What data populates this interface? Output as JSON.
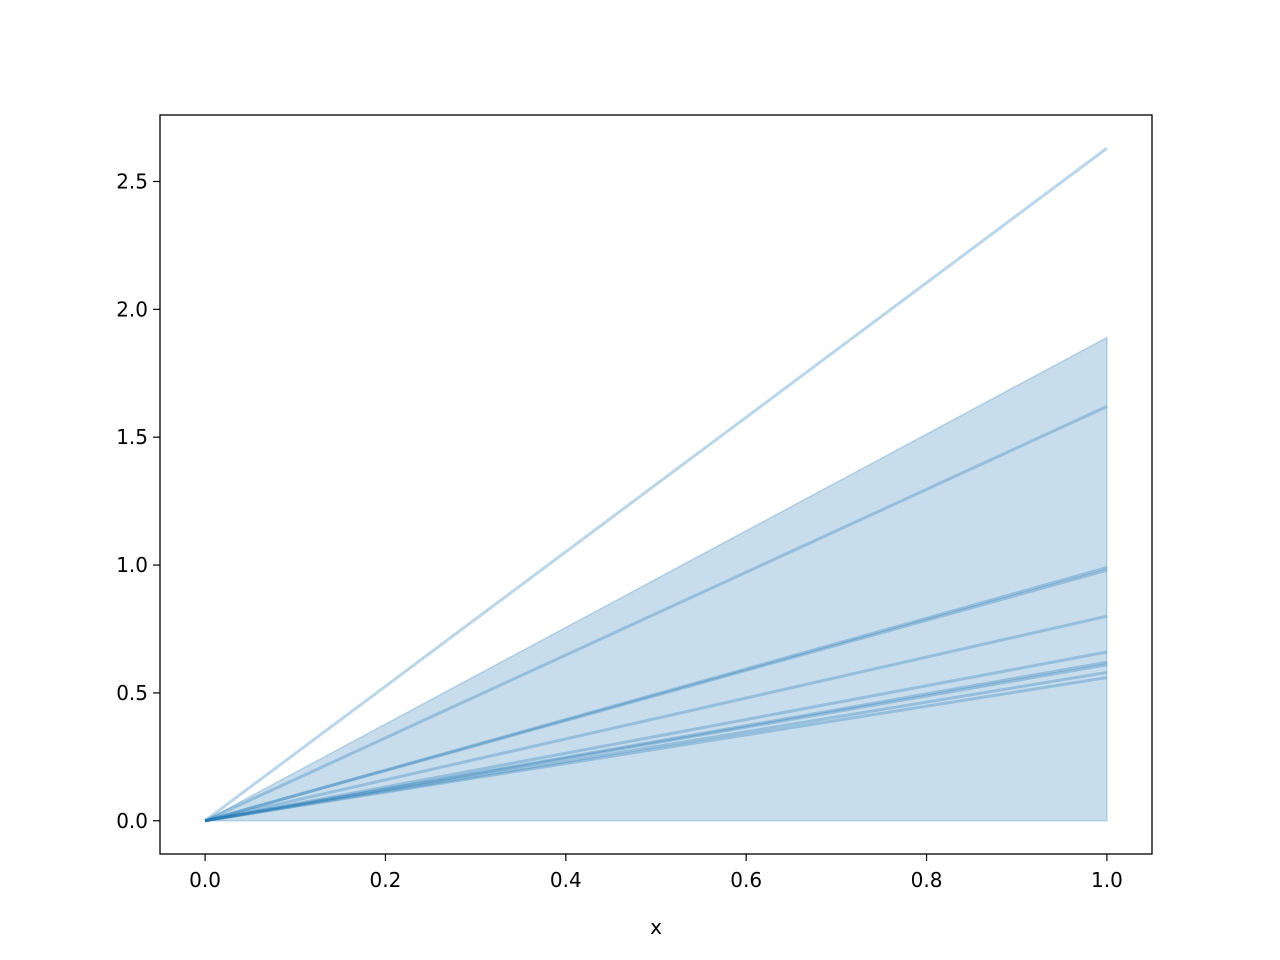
{
  "chart_data": {
    "type": "line",
    "title": "",
    "xlabel": "x",
    "ylabel": "",
    "xlim": [
      -0.05,
      1.05
    ],
    "ylim": [
      -0.13,
      2.76
    ],
    "grid": false,
    "x": [
      0.0,
      1.0
    ],
    "x_ticks": [
      "0.0",
      "0.2",
      "0.4",
      "0.6",
      "0.8",
      "1.0"
    ],
    "y_ticks": [
      "0.0",
      "0.5",
      "1.0",
      "1.5",
      "2.0",
      "2.5"
    ],
    "series": [
      {
        "values": [
          0,
          2.63
        ]
      },
      {
        "values": [
          0,
          1.62
        ]
      },
      {
        "values": [
          0,
          0.99
        ]
      },
      {
        "values": [
          0,
          0.98
        ]
      },
      {
        "values": [
          0,
          0.8
        ]
      },
      {
        "values": [
          0,
          0.66
        ]
      },
      {
        "values": [
          0,
          0.62
        ]
      },
      {
        "values": [
          0,
          0.61
        ]
      },
      {
        "values": [
          0,
          0.58
        ]
      },
      {
        "values": [
          0,
          0.56
        ]
      }
    ],
    "band": {
      "lower": [
        0,
        0
      ],
      "upper": [
        0,
        1.89
      ]
    },
    "colors": {
      "line": "#1f77b4",
      "line_alpha": 0.3,
      "band_alpha": 0.25
    }
  }
}
